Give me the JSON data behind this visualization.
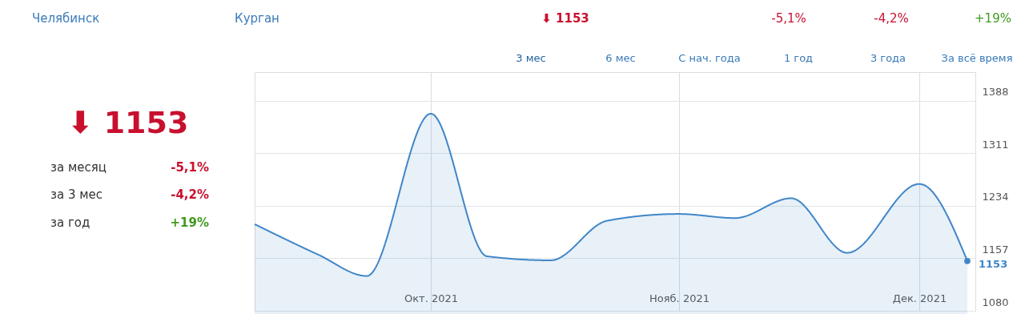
{
  "chart_data": {
    "type": "area",
    "x": [
      "2021-09-09",
      "2021-09-17",
      "2021-09-23",
      "2021-10-01",
      "2021-10-08",
      "2021-10-16",
      "2021-10-23",
      "2021-11-01",
      "2021-11-08",
      "2021-11-15",
      "2021-11-22",
      "2021-12-01",
      "2021-12-07"
    ],
    "series": [
      {
        "color": "#3f86c8",
        "values": [
          1207,
          1162,
          1131,
          1369,
          1160,
          1154,
          1212,
          1222,
          1216,
          1245,
          1165,
          1266,
          1153
        ],
        "value_labels": [
          null,
          null,
          null,
          null,
          null,
          null,
          null,
          null,
          null,
          null,
          null,
          null,
          "1153"
        ]
      }
    ],
    "xlim": [
      "2021-09-09",
      "2021-12-08"
    ],
    "xticks": [
      {
        "value": "2021-10-01",
        "label": "Окт. 2021"
      },
      {
        "value": "2021-11-01",
        "label": "Нояб. 2021"
      },
      {
        "value": "2021-12-01",
        "label": "Дек. 2021"
      }
    ],
    "ylim": [
      1080,
      1430
    ],
    "yticks": [
      1080,
      1157,
      1234,
      1311,
      1388
    ],
    "grid": true,
    "marker": "none",
    "line_style": "solid",
    "annotations": [
      "Челябинск",
      "Курган",
      "⬇ 1153",
      "-5,1%",
      "-4,2%",
      "+19%",
      "3 мес",
      "6 мес",
      "С нач. года",
      "1 год",
      "3 года",
      "За всё время",
      "⬇ 1153",
      "за месяц",
      "-5,1%",
      "за 3 мес",
      "-4,2%",
      "за год",
      "+19%"
    ]
  }
}
